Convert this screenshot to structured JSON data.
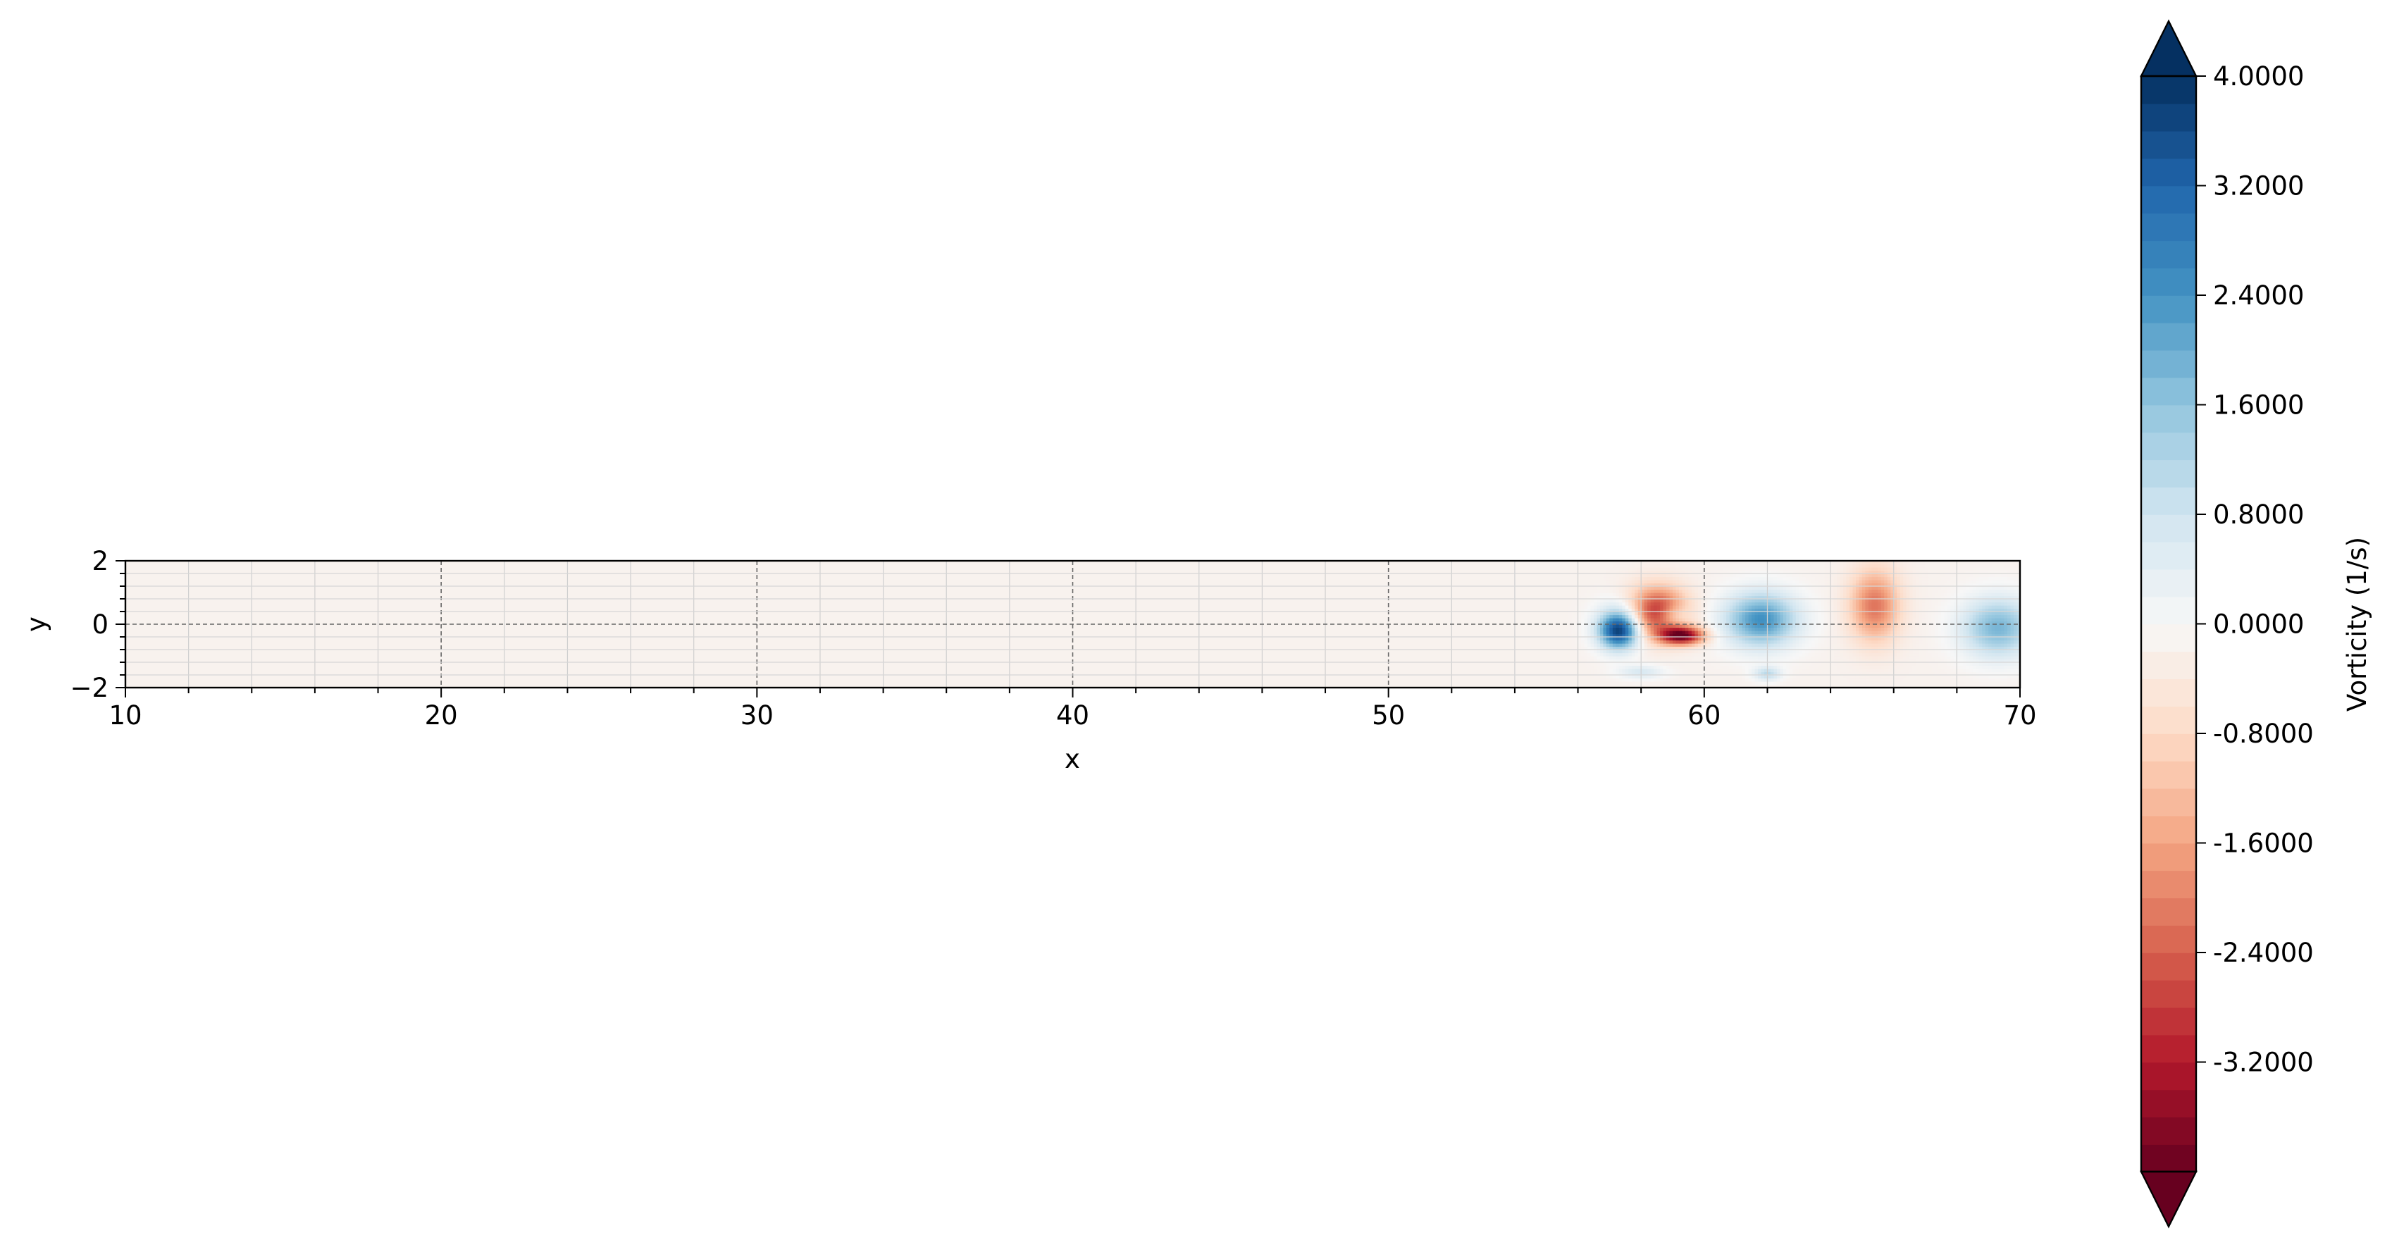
{
  "chart_data": {
    "type": "heatmap",
    "title": "",
    "xlabel": "x",
    "ylabel": "y",
    "xlim": [
      10,
      70
    ],
    "ylim": [
      -2,
      2
    ],
    "x_ticks": [
      10,
      20,
      30,
      40,
      50,
      60,
      70
    ],
    "y_ticks": [
      -2,
      0,
      2
    ],
    "x_tick_labels": [
      "10",
      "20",
      "30",
      "40",
      "50",
      "60",
      "70"
    ],
    "y_tick_labels": [
      "−2",
      "0",
      "2"
    ],
    "grid": true,
    "aspect": "equal",
    "colormap": "RdBu",
    "colorbar": {
      "label": "Vorticity (1/s)",
      "vmin": -4.0,
      "vmax": 4.0,
      "extend": "both",
      "ticks": [
        4.0,
        3.2,
        2.4,
        1.6,
        0.8,
        0.0,
        -0.8,
        -1.6,
        -2.4,
        -3.2
      ],
      "tick_labels": [
        "4.0000",
        "3.2000",
        "2.4000",
        "1.6000",
        "0.8000",
        "0.0000",
        "-0.8000",
        "-1.6000",
        "-2.4000",
        "-3.2000"
      ]
    },
    "background_value": -0.15,
    "vortices": [
      {
        "x": 57.3,
        "y": -0.2,
        "value": 4.0,
        "sx": 0.45,
        "sy": 0.4
      },
      {
        "x": 57.5,
        "y": 0.4,
        "value": 0.6,
        "sx": 0.6,
        "sy": 0.4
      },
      {
        "x": 58.5,
        "y": 0.4,
        "value": -3.0,
        "sx": 0.65,
        "sy": 0.55
      },
      {
        "x": 59.3,
        "y": -0.35,
        "value": -3.6,
        "sx": 0.5,
        "sy": 0.2
      },
      {
        "x": 59.0,
        "y": 0.3,
        "value": 1.0,
        "sx": 0.35,
        "sy": 0.25
      },
      {
        "x": 61.8,
        "y": 0.15,
        "value": 2.6,
        "sx": 0.8,
        "sy": 0.6
      },
      {
        "x": 62.0,
        "y": -1.55,
        "value": 1.2,
        "sx": 0.3,
        "sy": 0.15
      },
      {
        "x": 58.0,
        "y": -1.5,
        "value": 0.8,
        "sx": 0.5,
        "sy": 0.15
      },
      {
        "x": 65.4,
        "y": 0.6,
        "value": -2.0,
        "sx": 0.55,
        "sy": 0.8
      },
      {
        "x": 69.3,
        "y": -0.1,
        "value": 2.0,
        "sx": 0.8,
        "sy": 0.65
      }
    ]
  }
}
